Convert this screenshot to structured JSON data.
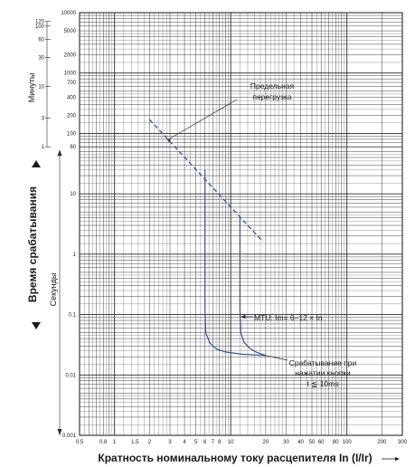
{
  "chart_data": {
    "type": "line",
    "xlabel": "Кратность номинальному току расцепителя In (I/Ir)",
    "ylabel": "Время срабатывания",
    "ylabel_seconds": "Секунды",
    "ylabel_minutes": "Минуты",
    "x_scale": "log",
    "y_scale": "log",
    "xlim": [
      0.5,
      300
    ],
    "ylim": [
      0.001,
      10000
    ],
    "grid": true,
    "x_ticks": [
      "0.5",
      "0.8",
      "1",
      "1.5",
      "2",
      "3",
      "4",
      "5",
      "6",
      "7",
      "8",
      "10",
      "20",
      "30",
      "40",
      "50",
      "60",
      "80",
      "100",
      "200",
      "300"
    ],
    "y_ticks_seconds": [
      "0.001",
      "0.01",
      "0.1",
      "1",
      "10",
      "60"
    ],
    "y_ticks_log_upper": [
      "10000",
      "5000",
      "2000",
      "1000",
      "700",
      "400",
      "200",
      "100"
    ],
    "y_ticks_minutes": [
      "1",
      "3",
      "10",
      "30",
      "60",
      "100",
      "120"
    ],
    "series": [
      {
        "name": "Предельная перегрузка",
        "style": "dashed",
        "x": [
          2,
          19
        ],
        "y": [
          170,
          1.6
        ]
      },
      {
        "name": "MTU: Im= 6–12 × In",
        "style": "solid",
        "x": [
          6,
          6,
          6.1,
          6.6,
          7.5,
          9,
          12.5,
          20
        ],
        "y": [
          25,
          0.12,
          0.05,
          0.034,
          0.027,
          0.024,
          0.022,
          0.021
        ]
      },
      {
        "name": "MTU: Im= 6–12 × In",
        "style": "solid",
        "x": [
          12,
          12,
          12.2,
          13,
          14.5,
          16.5,
          20
        ],
        "y": [
          4.2,
          0.12,
          0.05,
          0.035,
          0.028,
          0.024,
          0.021
        ]
      }
    ],
    "annotations": [
      {
        "lines": [
          "Предельная",
          "перегрузка"
        ]
      },
      {
        "lines": [
          "MTU: Im= 6–12 × In"
        ]
      },
      {
        "lines": [
          "Срабатывание при",
          "нажатии кнопки",
          "t ≦ 10ms"
        ]
      }
    ],
    "colors": {
      "curve": "#3d4f8f",
      "grid": "#2a2a2a",
      "text": "#1a1a1a"
    }
  }
}
